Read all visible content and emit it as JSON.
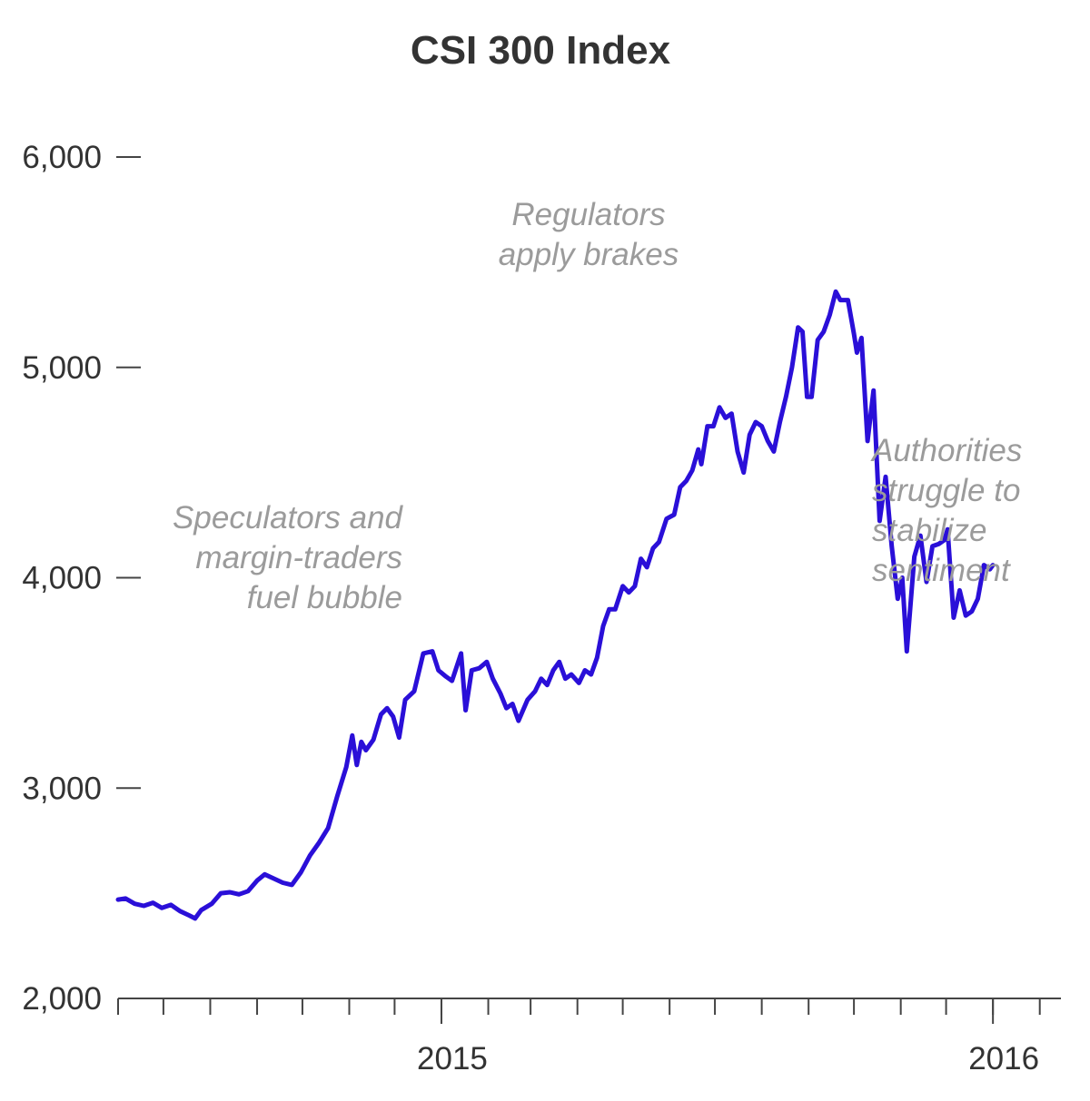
{
  "chart_data": {
    "type": "line",
    "title": "CSI 300 Index",
    "xlabel": "",
    "ylabel": "",
    "ylim": [
      2000,
      6000
    ],
    "xlim": [
      "2014-06-01",
      "2016-02-15"
    ],
    "y_ticks": [
      "2,000",
      "3,000",
      "4,000",
      "5,000",
      "6,000"
    ],
    "y_tick_values": [
      2000,
      3000,
      4000,
      5000,
      6000
    ],
    "x_tick_labels": [
      {
        "label": "2015",
        "date": "2015-01-01"
      },
      {
        "label": "2016",
        "date": "2016-01-01"
      }
    ],
    "x_minor_ticks": [
      "2014-06-01",
      "2014-07-01",
      "2014-08-01",
      "2014-09-01",
      "2014-10-01",
      "2014-11-01",
      "2014-12-01",
      "2015-01-01",
      "2015-02-01",
      "2015-03-01",
      "2015-04-01",
      "2015-05-01",
      "2015-06-01",
      "2015-07-01",
      "2015-08-01",
      "2015-09-01",
      "2015-10-01",
      "2015-11-01",
      "2015-12-01",
      "2016-01-01",
      "2016-02-01"
    ],
    "grid": false,
    "line_color": "#2a0fd8",
    "series": [
      {
        "values": [
          [
            "2014-06-01",
            2470
          ],
          [
            "2014-06-06",
            2475
          ],
          [
            "2014-06-12",
            2450
          ],
          [
            "2014-06-18",
            2440
          ],
          [
            "2014-06-24",
            2455
          ],
          [
            "2014-06-30",
            2430
          ],
          [
            "2014-07-06",
            2445
          ],
          [
            "2014-07-12",
            2415
          ],
          [
            "2014-07-18",
            2395
          ],
          [
            "2014-07-22",
            2380
          ],
          [
            "2014-07-26",
            2420
          ],
          [
            "2014-08-02",
            2450
          ],
          [
            "2014-08-08",
            2500
          ],
          [
            "2014-08-14",
            2505
          ],
          [
            "2014-08-20",
            2495
          ],
          [
            "2014-08-26",
            2510
          ],
          [
            "2014-09-01",
            2560
          ],
          [
            "2014-09-06",
            2590
          ],
          [
            "2014-09-12",
            2570
          ],
          [
            "2014-09-18",
            2550
          ],
          [
            "2014-09-24",
            2540
          ],
          [
            "2014-09-30",
            2600
          ],
          [
            "2014-10-06",
            2680
          ],
          [
            "2014-10-12",
            2740
          ],
          [
            "2014-10-18",
            2810
          ],
          [
            "2014-10-24",
            2960
          ],
          [
            "2014-10-30",
            3100
          ],
          [
            "2014-11-03",
            3250
          ],
          [
            "2014-11-06",
            3110
          ],
          [
            "2014-11-09",
            3220
          ],
          [
            "2014-11-12",
            3180
          ],
          [
            "2014-11-17",
            3230
          ],
          [
            "2014-11-22",
            3350
          ],
          [
            "2014-11-26",
            3380
          ],
          [
            "2014-11-30",
            3340
          ],
          [
            "2014-12-04",
            3240
          ],
          [
            "2014-12-08",
            3420
          ],
          [
            "2014-12-14",
            3460
          ],
          [
            "2014-12-20",
            3640
          ],
          [
            "2014-12-26",
            3650
          ],
          [
            "2014-12-30",
            3560
          ],
          [
            "2015-01-04",
            3530
          ],
          [
            "2015-01-08",
            3510
          ],
          [
            "2015-01-14",
            3640
          ],
          [
            "2015-01-17",
            3370
          ],
          [
            "2015-01-21",
            3560
          ],
          [
            "2015-01-26",
            3570
          ],
          [
            "2015-01-31",
            3600
          ],
          [
            "2015-02-04",
            3520
          ],
          [
            "2015-02-09",
            3450
          ],
          [
            "2015-02-13",
            3380
          ],
          [
            "2015-02-17",
            3400
          ],
          [
            "2015-02-21",
            3320
          ],
          [
            "2015-02-27",
            3420
          ],
          [
            "2015-03-04",
            3460
          ],
          [
            "2015-03-08",
            3520
          ],
          [
            "2015-03-12",
            3490
          ],
          [
            "2015-03-16",
            3560
          ],
          [
            "2015-03-20",
            3600
          ],
          [
            "2015-03-24",
            3520
          ],
          [
            "2015-03-28",
            3540
          ],
          [
            "2015-04-02",
            3500
          ],
          [
            "2015-04-06",
            3560
          ],
          [
            "2015-04-10",
            3540
          ],
          [
            "2015-04-14",
            3620
          ],
          [
            "2015-04-18",
            3770
          ],
          [
            "2015-04-22",
            3850
          ],
          [
            "2015-04-26",
            3850
          ],
          [
            "2015-05-01",
            3960
          ],
          [
            "2015-05-05",
            3930
          ],
          [
            "2015-05-09",
            3960
          ],
          [
            "2015-05-13",
            4090
          ],
          [
            "2015-05-17",
            4050
          ],
          [
            "2015-05-21",
            4140
          ],
          [
            "2015-05-25",
            4170
          ],
          [
            "2015-05-30",
            4280
          ],
          [
            "2015-06-04",
            4300
          ],
          [
            "2015-06-08",
            4430
          ],
          [
            "2015-06-12",
            4460
          ],
          [
            "2015-06-16",
            4510
          ],
          [
            "2015-06-20",
            4610
          ],
          [
            "2015-06-22",
            4540
          ],
          [
            "2015-06-26",
            4720
          ],
          [
            "2015-06-30",
            4720
          ],
          [
            "2015-07-04",
            4810
          ],
          [
            "2015-07-08",
            4760
          ],
          [
            "2015-07-12",
            4780
          ],
          [
            "2015-07-16",
            4600
          ],
          [
            "2015-07-20",
            4500
          ],
          [
            "2015-07-24",
            4680
          ],
          [
            "2015-07-28",
            4740
          ],
          [
            "2015-08-01",
            4720
          ],
          [
            "2015-08-05",
            4650
          ],
          [
            "2015-08-09",
            4600
          ],
          [
            "2015-08-13",
            4740
          ],
          [
            "2015-08-17",
            4860
          ],
          [
            "2015-08-21",
            5000
          ],
          [
            "2015-08-25",
            5190
          ],
          [
            "2015-08-28",
            5170
          ],
          [
            "2015-08-31",
            4860
          ],
          [
            "2015-09-03",
            4860
          ],
          [
            "2015-09-07",
            5130
          ],
          [
            "2015-09-11",
            5170
          ],
          [
            "2015-09-15",
            5250
          ],
          [
            "2015-09-19",
            5360
          ],
          [
            "2015-09-22",
            5320
          ],
          [
            "2015-09-27",
            5320
          ],
          [
            "2015-10-01",
            5160
          ],
          [
            "2015-10-03",
            5070
          ],
          [
            "2015-10-06",
            5140
          ],
          [
            "2015-10-10",
            4650
          ],
          [
            "2015-10-14",
            4890
          ],
          [
            "2015-10-18",
            4270
          ],
          [
            "2015-10-22",
            4480
          ],
          [
            "2015-10-26",
            4150
          ],
          [
            "2015-10-30",
            3900
          ],
          [
            "2015-11-02",
            4000
          ],
          [
            "2015-11-05",
            3650
          ],
          [
            "2015-11-10",
            4100
          ],
          [
            "2015-11-14",
            4200
          ],
          [
            "2015-11-18",
            3980
          ],
          [
            "2015-11-22",
            4150
          ],
          [
            "2015-11-26",
            4160
          ],
          [
            "2015-11-30",
            4180
          ],
          [
            "2015-12-02",
            4230
          ],
          [
            "2015-12-06",
            3810
          ],
          [
            "2015-12-10",
            3940
          ],
          [
            "2015-12-14",
            3820
          ],
          [
            "2015-12-18",
            3840
          ],
          [
            "2015-12-22",
            3900
          ],
          [
            "2015-12-26",
            4060
          ],
          [
            "2015-12-30",
            4040
          ],
          [
            "2016-01-01",
            4060
          ]
        ]
      }
    ],
    "annotations": [
      {
        "lines": [
          "Speculators and",
          "margin-traders",
          "fuel bubble"
        ]
      },
      {
        "lines": [
          "Regulators",
          "apply brakes"
        ]
      },
      {
        "lines": [
          "Authorities",
          "struggle to",
          "stabilize",
          "sentiment"
        ]
      }
    ]
  }
}
